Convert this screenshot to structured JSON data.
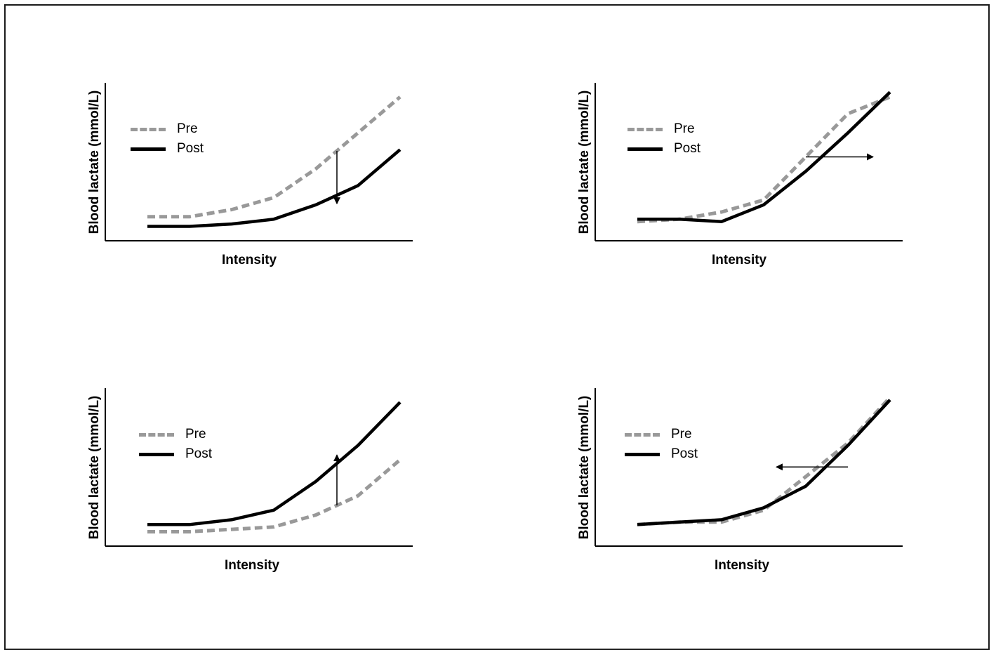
{
  "chart_data": [
    {
      "type": "line",
      "xlabel": "Intensity",
      "ylabel": "Blood lactate (mmol/L)",
      "x": [
        1,
        2,
        3,
        4,
        5,
        6,
        7
      ],
      "series": [
        {
          "name": "Pre",
          "style": "dashed",
          "color": "#999999",
          "values": [
            1.0,
            1.0,
            1.3,
            1.8,
            3.0,
            4.5,
            6.0
          ]
        },
        {
          "name": "Post",
          "style": "solid",
          "color": "#000000",
          "values": [
            0.6,
            0.6,
            0.7,
            0.9,
            1.5,
            2.3,
            3.8
          ]
        }
      ],
      "annotation": {
        "arrow": "down",
        "at_x": 5.5
      },
      "xlim": [
        0,
        7.3
      ],
      "ylim": [
        0,
        6.5
      ]
    },
    {
      "type": "line",
      "xlabel": "Intensity",
      "ylabel": "Blood lactate (mmol/L)",
      "x": [
        1,
        2,
        3,
        4,
        5,
        6,
        7
      ],
      "series": [
        {
          "name": "Pre",
          "style": "dashed",
          "color": "#999999",
          "values": [
            0.8,
            0.9,
            1.2,
            1.7,
            3.5,
            5.3,
            6.0
          ]
        },
        {
          "name": "Post",
          "style": "solid",
          "color": "#000000",
          "values": [
            0.9,
            0.9,
            0.8,
            1.5,
            2.9,
            4.5,
            6.2
          ]
        }
      ],
      "annotation": {
        "arrow": "right",
        "at_y": 3.5
      },
      "xlim": [
        0,
        7.3
      ],
      "ylim": [
        0,
        6.5
      ]
    },
    {
      "type": "line",
      "xlabel": "Intensity",
      "ylabel": "Blood lactate (mmol/L)",
      "x": [
        1,
        2,
        3,
        4,
        5,
        6,
        7
      ],
      "series": [
        {
          "name": "Pre",
          "style": "dashed",
          "color": "#999999",
          "values": [
            0.6,
            0.6,
            0.7,
            0.8,
            1.3,
            2.1,
            3.6
          ]
        },
        {
          "name": "Post",
          "style": "solid",
          "color": "#000000",
          "values": [
            0.9,
            0.9,
            1.1,
            1.5,
            2.7,
            4.2,
            6.0
          ]
        }
      ],
      "annotation": {
        "arrow": "up",
        "at_x": 5.5
      },
      "xlim": [
        0,
        7.3
      ],
      "ylim": [
        0,
        6.5
      ]
    },
    {
      "type": "line",
      "xlabel": "Intensity",
      "ylabel": "Blood lactate (mmol/L)",
      "x": [
        1,
        2,
        3,
        4,
        5,
        6,
        7
      ],
      "series": [
        {
          "name": "Pre",
          "style": "dashed",
          "color": "#999999",
          "values": [
            0.9,
            1.0,
            1.0,
            1.5,
            2.9,
            4.3,
            6.2
          ]
        },
        {
          "name": "Post",
          "style": "solid",
          "color": "#000000",
          "values": [
            0.9,
            1.0,
            1.1,
            1.6,
            2.5,
            4.2,
            6.1
          ]
        }
      ],
      "annotation": {
        "arrow": "left",
        "at_y": 3.3
      },
      "xlim": [
        0,
        7.3
      ],
      "ylim": [
        0,
        6.5
      ]
    }
  ]
}
